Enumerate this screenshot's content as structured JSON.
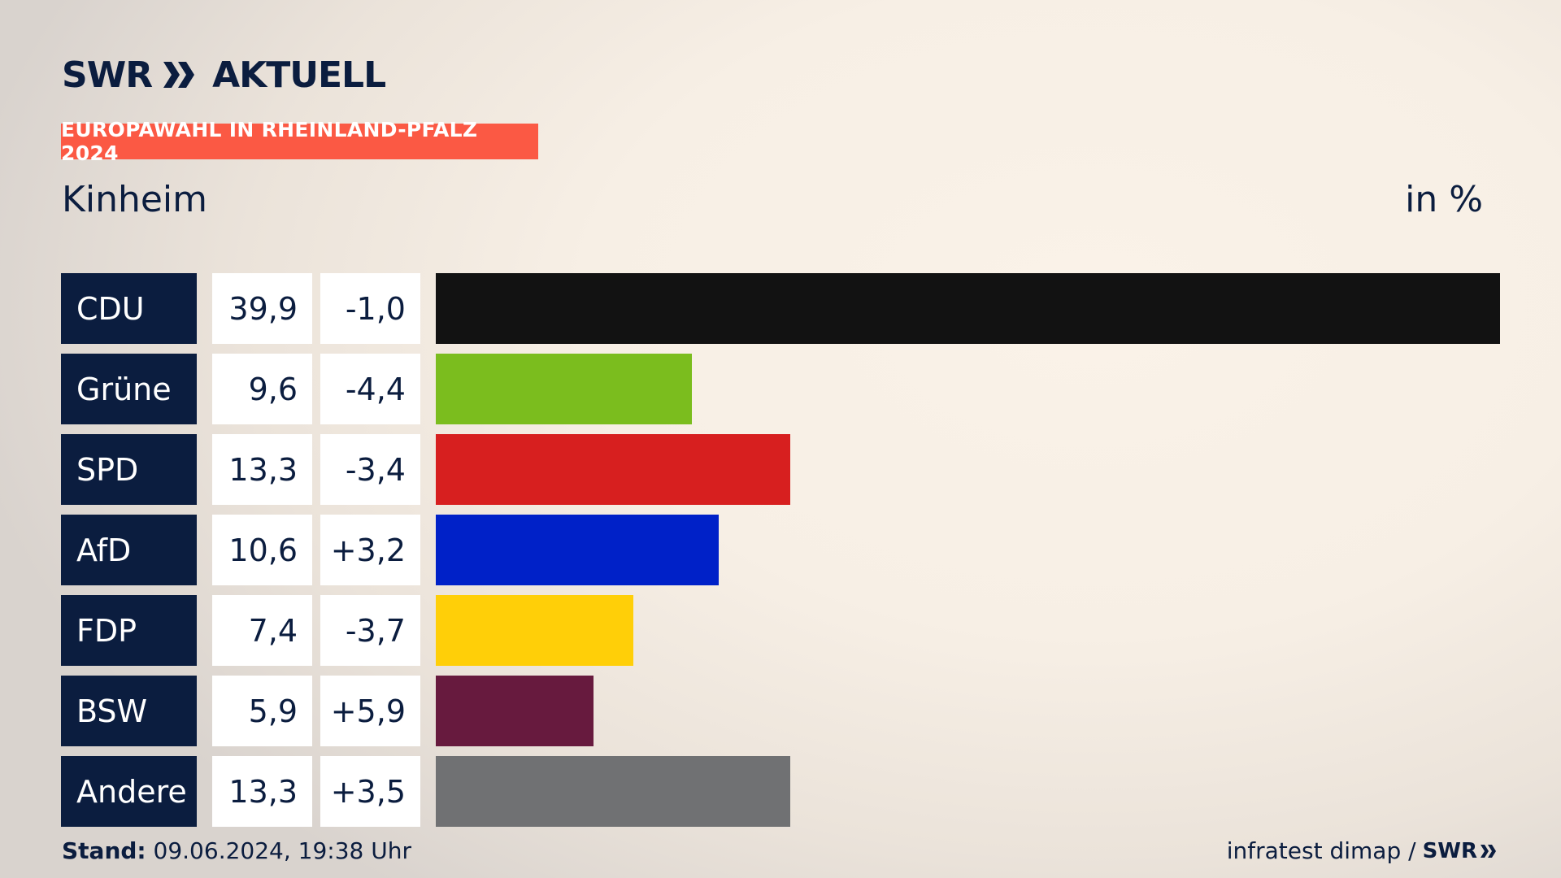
{
  "brand": {
    "swr": "SWR",
    "aktuell": "AKTUELL"
  },
  "header": {
    "badge": "EUROPAWAHL IN RHEINLAND-PFALZ 2024",
    "place": "Kinheim",
    "unit": "in %"
  },
  "footer": {
    "stand_label": "Stand:",
    "stand_value": "09.06.2024, 19:38 Uhr",
    "source": "infratest dimap /",
    "source_brand": "SWR"
  },
  "chart_data": {
    "type": "bar",
    "orientation": "horizontal",
    "title": "Kinheim",
    "unit": "in %",
    "categories": [
      "CDU",
      "Grüne",
      "SPD",
      "AfD",
      "FDP",
      "BSW",
      "Andere"
    ],
    "values": [
      39.9,
      9.6,
      13.3,
      10.6,
      7.4,
      5.9,
      13.3
    ],
    "value_labels": [
      "39,9",
      "9,6",
      "13,3",
      "10,6",
      "7,4",
      "5,9",
      "13,3"
    ],
    "diff_labels": [
      "-1,0",
      "-4,4",
      "-3,4",
      "+3,2",
      "-3,7",
      "+5,9",
      "+3,5"
    ],
    "colors": [
      "#121212",
      "#7bbd1e",
      "#d71f1f",
      "#0021c8",
      "#ffcf08",
      "#671a3e",
      "#707173"
    ],
    "xlim": [
      0,
      39.9
    ],
    "grid": false,
    "legend": "none"
  }
}
